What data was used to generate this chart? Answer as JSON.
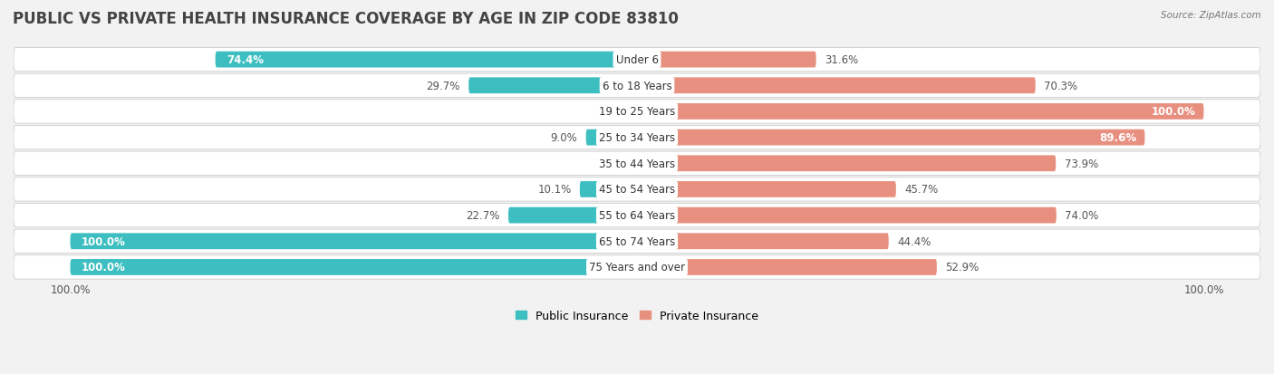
{
  "title": "PUBLIC VS PRIVATE HEALTH INSURANCE COVERAGE BY AGE IN ZIP CODE 83810",
  "source": "Source: ZipAtlas.com",
  "categories": [
    "Under 6",
    "6 to 18 Years",
    "19 to 25 Years",
    "25 to 34 Years",
    "35 to 44 Years",
    "45 to 54 Years",
    "55 to 64 Years",
    "65 to 74 Years",
    "75 Years and over"
  ],
  "public_values": [
    74.4,
    29.7,
    0.0,
    9.0,
    0.0,
    10.1,
    22.7,
    100.0,
    100.0
  ],
  "private_values": [
    31.6,
    70.3,
    100.0,
    89.6,
    73.9,
    45.7,
    74.0,
    44.4,
    52.9
  ],
  "public_color": "#3dbec0",
  "private_color": "#e89080",
  "row_bg_color": "#e8e8e8",
  "background_color": "#f2f2f2",
  "title_fontsize": 12,
  "label_fontsize": 8.5,
  "value_fontsize": 8.5,
  "legend_fontsize": 9,
  "xlim": 110,
  "bar_height": 0.62
}
